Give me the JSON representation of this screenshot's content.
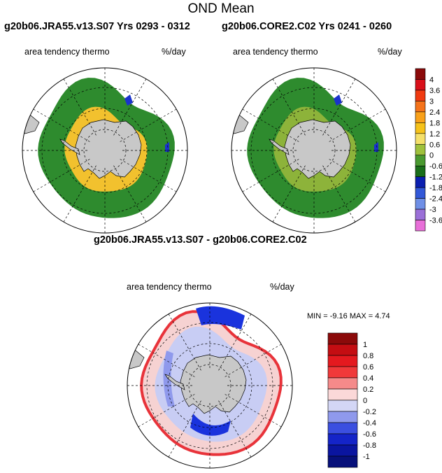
{
  "figure": {
    "title": "OND Mean"
  },
  "panels": [
    {
      "title": "g20b06.JRA55.v13.S07  Yrs 0293 - 0312",
      "variable": "area tendency thermo",
      "units": "%/day",
      "map_colors": {
        "ocean_main": "#2e8b2e",
        "ocean_inner": "#2e8b2e",
        "coast_band": "#f2c12e",
        "hotspot": "#1a33cc"
      }
    },
    {
      "title": "g20b06.CORE2.C02  Yrs 0241 - 0260",
      "variable": "area tendency thermo",
      "units": "%/day",
      "map_colors": {
        "ocean_main": "#2e8b2e",
        "ocean_inner": "#2e8b2e",
        "coast_band": "#8db33a",
        "hotspot": "#1a33cc"
      }
    },
    {
      "title": "g20b06.JRA55.v13.S07 - g20b06.CORE2.C02",
      "variable": "area tendency thermo",
      "units": "%/day",
      "min_max_text": "MIN =  -9.16 MAX =   4.74",
      "map_colors": {
        "ocean_main": "#f6d2d2",
        "ocean_inner": "#c8cdf4",
        "coast_band": "#e8333a",
        "hotspot": "#1a33dd"
      }
    }
  ],
  "colorbar_abs": {
    "labels": [
      "4",
      "3.6",
      "3",
      "2.4",
      "1.8",
      "1.2",
      "0.6",
      "0",
      "-0.6",
      "-1.2",
      "-1.8",
      "-2.4",
      "-3",
      "-3.6"
    ],
    "colors": [
      "#8b0a0a",
      "#d9101a",
      "#f03a10",
      "#f5731a",
      "#f9a11a",
      "#f6c21a",
      "#f5e06a",
      "#9fc13c",
      "#4a9a30",
      "#1a6e1a",
      "#0b1fb0",
      "#3258d8",
      "#6f8fe6",
      "#9b70d8",
      "#e86fd8"
    ]
  },
  "colorbar_diff": {
    "labels": [
      "1",
      "0.8",
      "0.6",
      "0.4",
      "0.2",
      "0",
      "-0.2",
      "-0.4",
      "-0.6",
      "-0.8",
      "-1"
    ],
    "colors": [
      "#8b0a0a",
      "#c40d12",
      "#e4191f",
      "#f0393a",
      "#f58a8a",
      "#fbd8d8",
      "#d3d6f5",
      "#8f99ec",
      "#3b4fe0",
      "#1424c8",
      "#0a15a0",
      "#07107a"
    ]
  }
}
